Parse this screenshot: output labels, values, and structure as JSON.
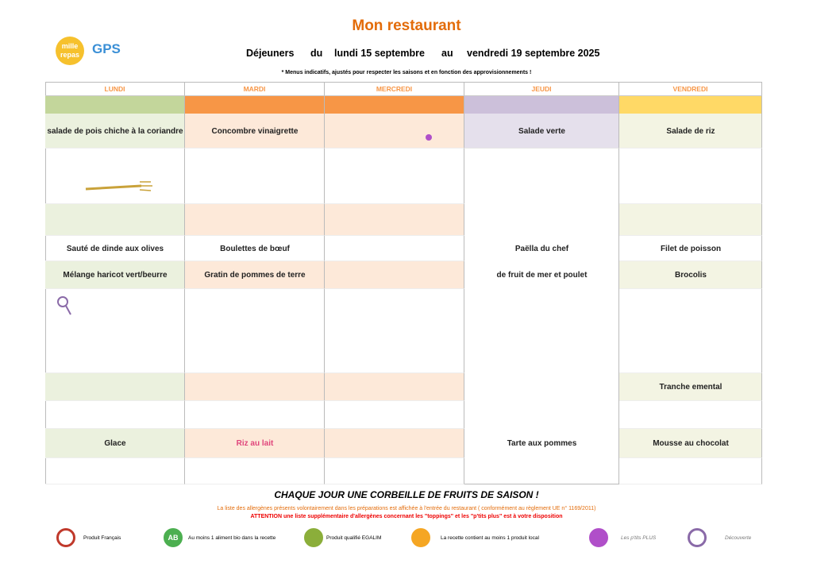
{
  "header": {
    "title": "Mon restaurant",
    "logo": {
      "line1": "mille",
      "line2": "repas",
      "gps": "GPS"
    },
    "period": {
      "label": "Déjeuners",
      "from_word": "du",
      "from": "lundi 15 septembre",
      "to_word": "au",
      "to": "vendredi 19 septembre 2025"
    },
    "note": "* Menus indicatifs, ajustés pour respecter les saisons et en fonction des approvisionnements !"
  },
  "menu": {
    "days": [
      {
        "name": "LUNDI",
        "dishes": [
          {
            "text": "salade de pois chiche à la coriandre"
          },
          {
            "text": "Sauté de dinde aux olives"
          },
          {
            "text": "Mélange haricot vert/beurre"
          },
          {
            "text": "Glace"
          }
        ]
      },
      {
        "name": "MARDI",
        "dishes": [
          {
            "text": "Concombre vinaigrette"
          },
          {
            "text": "Boulettes de bœuf"
          },
          {
            "text": "Gratin de pommes de terre"
          },
          {
            "text": "Riz au lait",
            "color": "#e0457b"
          }
        ]
      },
      {
        "name": "MERCREDI",
        "dishes": []
      },
      {
        "name": "JEUDI",
        "dishes": [
          {
            "text": "Salade verte"
          },
          {
            "text": "Paëlla du chef"
          },
          {
            "text": "de fruit de mer et poulet"
          },
          {
            "text": "Tarte aux pommes"
          }
        ]
      },
      {
        "name": "VENDREDI",
        "dishes": [
          {
            "text": "Salade de riz"
          },
          {
            "text": "Filet de poisson"
          },
          {
            "text": "Brocolis"
          },
          {
            "text": "Tranche emental"
          },
          {
            "text": "Mousse au chocolat"
          }
        ]
      }
    ]
  },
  "footer": {
    "fruit": "CHAQUE JOUR UNE CORBEILLE DE FRUITS DE SAISON !",
    "allergens": "La liste des allergènes présents volontairement dans les préparations est affichée à l'entrée du restaurant ( conformément au règlement UE n° 1169/2011)",
    "warning": "ATTENTION une liste supplémentaire d'allergènes concernant les \"toppings\" et les \"p'tits plus\" est à votre disposition"
  },
  "legend": [
    {
      "label": "Produit Français"
    },
    {
      "label": "Au moins 1 aliment bio dans la recette",
      "icon_text": "AB"
    },
    {
      "label": "Produit qualifié EGALIM"
    },
    {
      "label": "La recette contient au moins 1 produit local"
    },
    {
      "label": "Les p'tits PLUS"
    },
    {
      "label": "Découverte"
    }
  ]
}
